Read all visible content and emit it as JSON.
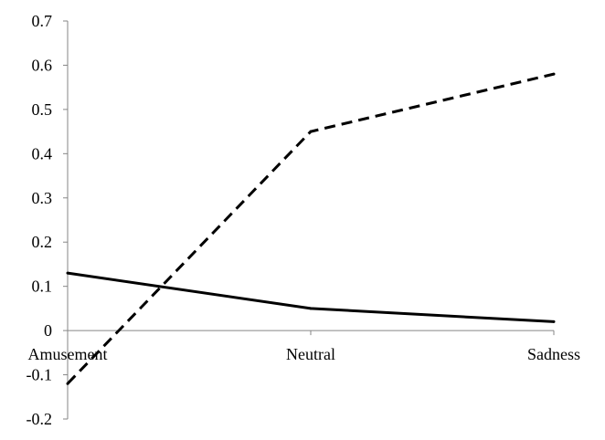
{
  "chart_data": {
    "type": "line",
    "title": "",
    "xlabel": "",
    "ylabel": "",
    "categories": [
      "Amusement",
      "Neutral",
      "Sadness"
    ],
    "ylim": [
      -0.2,
      0.7
    ],
    "yticks": [
      "0.7",
      "0.6",
      "0.5",
      "0.4",
      "0.3",
      "0.2",
      "0.1",
      "0",
      "-0.1",
      "-0.2"
    ],
    "grid": false,
    "legend": "none",
    "series": [
      {
        "style": "solid",
        "color": "#000000",
        "values": [
          0.13,
          0.05,
          0.02
        ]
      },
      {
        "style": "dashed",
        "color": "#000000",
        "values": [
          -0.12,
          0.45,
          0.58
        ]
      }
    ]
  }
}
